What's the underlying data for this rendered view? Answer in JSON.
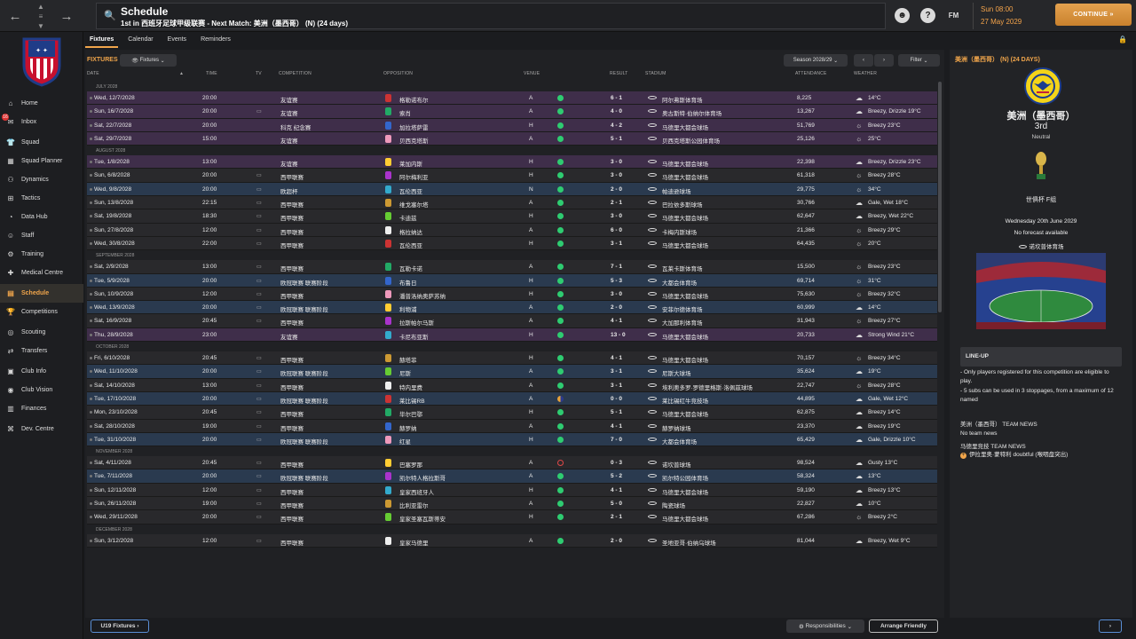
{
  "header": {
    "title": "Schedule",
    "subtitle": "1st in 西班牙足球甲级联赛 - Next Match: 美洲（墨西哥） (N) (24 days)",
    "fm_label": "FM",
    "date_line1": "Sun 08:00",
    "date_line2": "27 May 2029",
    "continue_label": "CONTINUE"
  },
  "sidebar": {
    "items": [
      {
        "label": "Home",
        "icon": "home-icon",
        "glyph": "⌂"
      },
      {
        "label": "Inbox",
        "icon": "inbox-icon",
        "glyph": "✉",
        "badge": "16"
      },
      {
        "label": "Squad",
        "icon": "shirt-icon",
        "glyph": "👕"
      },
      {
        "label": "Squad Planner",
        "icon": "planner-icon",
        "glyph": "▦"
      },
      {
        "label": "Dynamics",
        "icon": "dynamics-icon",
        "glyph": "⚇"
      },
      {
        "label": "Tactics",
        "icon": "tactics-icon",
        "glyph": "⊞"
      },
      {
        "label": "Data Hub",
        "icon": "datahub-icon",
        "glyph": "◔"
      },
      {
        "label": "Staff",
        "icon": "staff-icon",
        "glyph": "☺"
      },
      {
        "label": "Training",
        "icon": "training-icon",
        "glyph": "⚙"
      },
      {
        "label": "Medical Centre",
        "icon": "medical-icon",
        "glyph": "✚"
      },
      {
        "label": "Schedule",
        "icon": "calendar-icon",
        "glyph": "▤"
      },
      {
        "label": "Competitions",
        "icon": "trophy-icon",
        "glyph": "🏆"
      },
      {
        "label": "Scouting",
        "icon": "scouting-icon",
        "glyph": "◎"
      },
      {
        "label": "Transfers",
        "icon": "transfers-icon",
        "glyph": "⇄"
      },
      {
        "label": "Club Info",
        "icon": "clubinfo-icon",
        "glyph": "▣"
      },
      {
        "label": "Club Vision",
        "icon": "vision-icon",
        "glyph": "◉"
      },
      {
        "label": "Finances",
        "icon": "finances-icon",
        "glyph": "▥"
      },
      {
        "label": "Dev. Centre",
        "icon": "devcentre-icon",
        "glyph": "⌘"
      }
    ]
  },
  "tabs": [
    "Fixtures",
    "Calendar",
    "Events",
    "Reminders"
  ],
  "fixtures": {
    "heading": "FIXTURES",
    "filter_dropdown": "Fixtures",
    "season": "Season 2028/29",
    "filter_label": "Filter",
    "columns": {
      "date": "DATE",
      "time": "TIME",
      "tv": "TV",
      "competition": "COMPETITION",
      "opposition": "OPPOSITION",
      "venue": "VENUE",
      "result": "RESULT",
      "stadium": "STADIUM",
      "attendance": "ATTENDANCE",
      "weather": "WEATHER"
    },
    "months": [
      {
        "name": "JULY 2028",
        "rows": [
          {
            "type": "friendly",
            "date": "Wed, 12/7/2028",
            "time": "20:00",
            "tv": false,
            "comp": "友谊赛",
            "opp": "格勒诺布尔",
            "venue": "A",
            "res": "w",
            "score": "6 - 1",
            "stadium": "阿尔弗斯体育场",
            "att": "8,225",
            "weather": "14°C",
            "wi": "☁"
          },
          {
            "type": "friendly",
            "date": "Sun, 16/7/2028",
            "time": "20:00",
            "tv": true,
            "comp": "友谊赛",
            "opp": "索肖",
            "venue": "A",
            "res": "w",
            "score": "4 - 0",
            "stadium": "奥古斯特·伯纳尔体育场",
            "att": "13,267",
            "weather": "Breezy, Drizzle 19°C",
            "wi": "☁"
          },
          {
            "type": "friendly",
            "date": "Sat, 22/7/2028",
            "time": "20:00",
            "tv": false,
            "comp": "科克 纪念赛",
            "opp": "加拉塔萨雷",
            "venue": "H",
            "res": "w",
            "score": "4 - 2",
            "stadium": "马德里大都会球场",
            "att": "51,769",
            "weather": "Breezy 23°C",
            "wi": "☼"
          },
          {
            "type": "friendly",
            "date": "Sat, 29/7/2028",
            "time": "15:00",
            "tv": false,
            "comp": "友谊赛",
            "opp": "贝西克塔斯",
            "venue": "A",
            "res": "w",
            "score": "5 - 1",
            "stadium": "贝西克塔斯公园体育场",
            "att": "25,126",
            "weather": "25°C",
            "wi": "☼"
          }
        ]
      },
      {
        "name": "AUGUST 2028",
        "rows": [
          {
            "type": "friendly",
            "date": "Tue, 1/8/2028",
            "time": "13:00",
            "tv": false,
            "comp": "友谊赛",
            "opp": "莱加内斯",
            "venue": "H",
            "res": "w",
            "score": "3 - 0",
            "stadium": "马德里大都会球场",
            "att": "22,398",
            "weather": "Breezy, Drizzle 23°C",
            "wi": "☁"
          },
          {
            "type": "league",
            "date": "Sun, 6/8/2028",
            "time": "20:00",
            "tv": true,
            "comp": "西甲联赛",
            "opp": "阿尔梅利亚",
            "venue": "H",
            "res": "w",
            "score": "3 - 0",
            "stadium": "马德里大都会球场",
            "att": "61,318",
            "weather": "Breezy 28°C",
            "wi": "☼"
          },
          {
            "type": "euro",
            "date": "Wed, 9/8/2028",
            "time": "20:00",
            "tv": true,
            "comp": "欧超杯",
            "opp": "瓦伦西亚",
            "venue": "N",
            "res": "w",
            "score": "2 - 0",
            "stadium": "帕迪逊球场",
            "att": "29,775",
            "weather": "34°C",
            "wi": "☼"
          },
          {
            "type": "league",
            "date": "Sun, 13/8/2028",
            "time": "22:15",
            "tv": true,
            "comp": "西甲联赛",
            "opp": "维戈塞尔塔",
            "venue": "A",
            "res": "w",
            "score": "2 - 1",
            "stadium": "巴拉依多斯球场",
            "att": "30,766",
            "weather": "Gale, Wet 18°C",
            "wi": "☁"
          },
          {
            "type": "league",
            "date": "Sat, 19/8/2028",
            "time": "18:30",
            "tv": true,
            "comp": "西甲联赛",
            "opp": "卡迪兹",
            "venue": "H",
            "res": "w",
            "score": "3 - 0",
            "stadium": "马德里大都会球场",
            "att": "62,647",
            "weather": "Breezy, Wet 22°C",
            "wi": "☁"
          },
          {
            "type": "league",
            "date": "Sun, 27/8/2028",
            "time": "12:00",
            "tv": true,
            "comp": "西甲联赛",
            "opp": "格拉纳达",
            "venue": "A",
            "res": "w",
            "score": "6 - 0",
            "stadium": "卡梅内斯球场",
            "att": "21,366",
            "weather": "Breezy 29°C",
            "wi": "☼"
          },
          {
            "type": "league",
            "date": "Wed, 30/8/2028",
            "time": "22:00",
            "tv": true,
            "comp": "西甲联赛",
            "opp": "瓦伦西亚",
            "venue": "H",
            "res": "w",
            "score": "3 - 1",
            "stadium": "马德里大都会球场",
            "att": "64,435",
            "weather": "20°C",
            "wi": "☼"
          }
        ]
      },
      {
        "name": "SEPTEMBER 2028",
        "rows": [
          {
            "type": "league",
            "date": "Sat, 2/9/2028",
            "time": "13:00",
            "tv": true,
            "comp": "西甲联赛",
            "opp": "瓦勒卡诺",
            "venue": "A",
            "res": "w",
            "score": "7 - 1",
            "stadium": "瓦莱卡斯体育场",
            "att": "15,500",
            "weather": "Breezy 23°C",
            "wi": "☼"
          },
          {
            "type": "euro",
            "date": "Tue, 5/9/2028",
            "time": "20:00",
            "tv": true,
            "comp": "欧冠联赛 联赛阶段",
            "opp": "布鲁日",
            "venue": "H",
            "res": "w",
            "score": "5 - 3",
            "stadium": "大都会体育场",
            "att": "69,714",
            "weather": "31°C",
            "wi": "☼"
          },
          {
            "type": "league",
            "date": "Sun, 10/9/2028",
            "time": "12:00",
            "tv": true,
            "comp": "西甲联赛",
            "opp": "潘普洛纳奥萨苏纳",
            "venue": "H",
            "res": "w",
            "score": "3 - 0",
            "stadium": "马德里大都会球场",
            "att": "75,630",
            "weather": "Breezy 32°C",
            "wi": "☼"
          },
          {
            "type": "euro",
            "date": "Wed, 13/9/2028",
            "time": "20:00",
            "tv": true,
            "comp": "欧冠联赛 联赛阶段",
            "opp": "利物浦",
            "venue": "A",
            "res": "w",
            "score": "2 - 0",
            "stadium": "安菲尔德体育场",
            "att": "60,999",
            "weather": "14°C",
            "wi": "☁"
          },
          {
            "type": "league",
            "date": "Sat, 16/9/2028",
            "time": "20:45",
            "tv": true,
            "comp": "西甲联赛",
            "opp": "拉斯帕尔马斯",
            "venue": "A",
            "res": "w",
            "score": "4 - 1",
            "stadium": "大加那利体育场",
            "att": "31,943",
            "weather": "Breezy 27°C",
            "wi": "☼"
          },
          {
            "type": "friendly",
            "date": "Thu, 28/9/2028",
            "time": "23:00",
            "tv": false,
            "comp": "友谊赛",
            "opp": "卡尼布亚斯",
            "venue": "H",
            "res": "w",
            "score": "13 - 0",
            "stadium": "马德里大都会球场",
            "att": "20,733",
            "weather": "Strong Wind 21°C",
            "wi": "☁"
          }
        ]
      },
      {
        "name": "OCTOBER 2028",
        "rows": [
          {
            "type": "league",
            "date": "Fri, 6/10/2028",
            "time": "20:45",
            "tv": true,
            "comp": "西甲联赛",
            "opp": "赫塔菲",
            "venue": "H",
            "res": "w",
            "score": "4 - 1",
            "stadium": "马德里大都会球场",
            "att": "70,157",
            "weather": "Breezy 34°C",
            "wi": "☼"
          },
          {
            "type": "euro",
            "date": "Wed, 11/10/2028",
            "time": "20:00",
            "tv": true,
            "comp": "欧冠联赛 联赛阶段",
            "opp": "尼斯",
            "venue": "A",
            "res": "w",
            "score": "3 - 1",
            "stadium": "尼斯大球场",
            "att": "35,624",
            "weather": "19°C",
            "wi": "☁"
          },
          {
            "type": "league",
            "date": "Sat, 14/10/2028",
            "time": "13:00",
            "tv": true,
            "comp": "西甲联赛",
            "opp": "特内里费",
            "venue": "A",
            "res": "w",
            "score": "3 - 1",
            "stadium": "埃利奥多罗·罗德里格斯·洛佩兹球场",
            "att": "22,747",
            "weather": "Breezy 28°C",
            "wi": "☼"
          },
          {
            "type": "euro",
            "date": "Tue, 17/10/2028",
            "time": "20:00",
            "tv": true,
            "comp": "欧冠联赛 联赛阶段",
            "opp": "莱比锡RB",
            "venue": "A",
            "res": "d",
            "score": "0 - 0",
            "stadium": "莱比锡红牛竞技场",
            "att": "44,895",
            "weather": "Gale, Wet 12°C",
            "wi": "☁"
          },
          {
            "type": "league",
            "date": "Mon, 23/10/2028",
            "time": "20:45",
            "tv": true,
            "comp": "西甲联赛",
            "opp": "毕尔巴鄂",
            "venue": "H",
            "res": "w",
            "score": "5 - 1",
            "stadium": "马德里大都会球场",
            "att": "62,875",
            "weather": "Breezy 14°C",
            "wi": "☁"
          },
          {
            "type": "league",
            "date": "Sat, 28/10/2028",
            "time": "19:00",
            "tv": true,
            "comp": "西甲联赛",
            "opp": "赫罗纳",
            "venue": "A",
            "res": "w",
            "score": "4 - 1",
            "stadium": "赫罗纳球场",
            "att": "23,370",
            "weather": "Breezy 19°C",
            "wi": "☁"
          },
          {
            "type": "euro",
            "date": "Tue, 31/10/2028",
            "time": "20:00",
            "tv": true,
            "comp": "欧冠联赛 联赛阶段",
            "opp": "红星",
            "venue": "H",
            "res": "w",
            "score": "7 - 0",
            "stadium": "大都会体育场",
            "att": "65,429",
            "weather": "Gale, Drizzle 10°C",
            "wi": "☁"
          }
        ]
      },
      {
        "name": "NOVEMBER 2028",
        "rows": [
          {
            "type": "league",
            "date": "Sat, 4/11/2028",
            "time": "20:45",
            "tv": true,
            "comp": "西甲联赛",
            "opp": "巴塞罗那",
            "venue": "A",
            "res": "l",
            "score": "0 - 3",
            "stadium": "诺坎普球场",
            "att": "98,524",
            "weather": "Gusty 13°C",
            "wi": "☁"
          },
          {
            "type": "euro",
            "date": "Tue, 7/11/2028",
            "time": "20:00",
            "tv": true,
            "comp": "欧冠联赛 联赛阶段",
            "opp": "凯尔特人格拉斯哥",
            "venue": "A",
            "res": "w",
            "score": "5 - 2",
            "stadium": "凯尔特公园体育场",
            "att": "58,324",
            "weather": "13°C",
            "wi": "☁"
          },
          {
            "type": "league",
            "date": "Sun, 12/11/2028",
            "time": "12:00",
            "tv": true,
            "comp": "西甲联赛",
            "opp": "皇家西班牙人",
            "venue": "H",
            "res": "w",
            "score": "4 - 1",
            "stadium": "马德里大都会球场",
            "att": "59,190",
            "weather": "Breezy 13°C",
            "wi": "☁"
          },
          {
            "type": "league",
            "date": "Sun, 26/11/2028",
            "time": "19:00",
            "tv": true,
            "comp": "西甲联赛",
            "opp": "比利亚雷尔",
            "venue": "A",
            "res": "w",
            "score": "5 - 0",
            "stadium": "陶瓷球场",
            "att": "22,827",
            "weather": "10°C",
            "wi": "☁"
          },
          {
            "type": "league",
            "date": "Wed, 29/11/2028",
            "time": "20:00",
            "tv": true,
            "comp": "西甲联赛",
            "opp": "皇家圣塞瓦斯蒂安",
            "venue": "H",
            "res": "w",
            "score": "2 - 1",
            "stadium": "马德里大都会球场",
            "att": "67,286",
            "weather": "Breezy 2°C",
            "wi": "☼"
          }
        ]
      },
      {
        "name": "DECEMBER 2028",
        "rows": [
          {
            "type": "league",
            "date": "Sun, 3/12/2028",
            "time": "12:00",
            "tv": true,
            "comp": "西甲联赛",
            "opp": "皇家马德里",
            "venue": "A",
            "res": "w",
            "score": "2 - 0",
            "stadium": "圣地亚哥·伯纳乌球场",
            "att": "81,044",
            "weather": "Breezy, Wet 9°C",
            "wi": "☁"
          }
        ]
      }
    ]
  },
  "bottom": {
    "u19_label": "U19 Fixtures",
    "responsibilities_label": "Responsibilities",
    "arrange_label": "Arrange Friendly"
  },
  "right_panel": {
    "title": "美洲（墨西哥） (N) (24 DAYS)",
    "team_name": "美洲（墨西哥）",
    "position": "3rd",
    "venue": "Neutral",
    "competition": "世俱杯 F组",
    "match_date": "Wednesday 20th June 2029",
    "forecast": "No forecast available",
    "stadium": "诺坎普体育场",
    "lineup_heading": "LINE-UP",
    "lineup_note1": "- Only players registered for this competition are eligible to play.",
    "lineup_note2": "- 5 subs can be used in 3 stoppages, from a maximum of 12 named",
    "opp_news_heading": "美洲（墨西哥） TEAM NEWS",
    "opp_news": "No team news",
    "own_news_heading": "马德里竞技 TEAM NEWS",
    "own_news": "伊拉里奥·蒙特利 doubtful (喉咽盘突出)"
  },
  "colors": {
    "accent": "#f0a54b",
    "friendly_row": "#3f2e4a",
    "euro_row": "#2a3a4f",
    "league_row": "#29292c",
    "win": "#2ecc71",
    "draw": "#e8a33a",
    "loss": "#e04848"
  }
}
